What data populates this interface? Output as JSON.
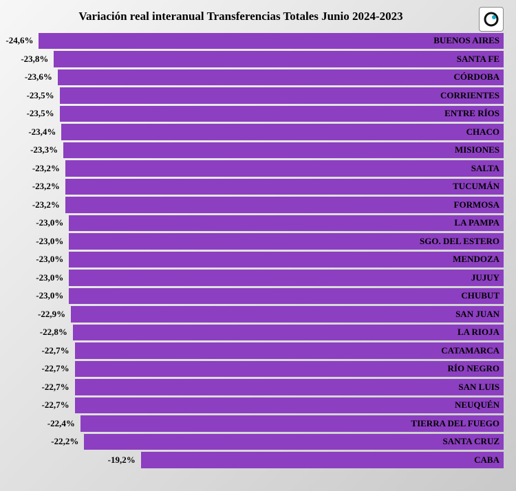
{
  "title": "Variación real interanual Transferencias Totales Junio 2024-2023",
  "title_fontsize": 17,
  "background_gradient_from": "#f7f7f7",
  "background_gradient_to": "#c9c9c9",
  "bar_color": "#8c3fc0",
  "value_label_color": "#000000",
  "province_label_color": "#000000",
  "label_fontsize": 13,
  "x_min": -26.0,
  "x_max": 0.0,
  "logo_colors": {
    "ring": "#111111",
    "dot": "#17a8c9"
  },
  "rows": [
    {
      "province": "BUENOS AIRES",
      "value": -24.6,
      "display": "-24,6%"
    },
    {
      "province": "SANTA FE",
      "value": -23.8,
      "display": "-23,8%"
    },
    {
      "province": "CÓRDOBA",
      "value": -23.6,
      "display": "-23,6%"
    },
    {
      "province": "CORRIENTES",
      "value": -23.5,
      "display": "-23,5%"
    },
    {
      "province": "ENTRE RÍOS",
      "value": -23.5,
      "display": "-23,5%"
    },
    {
      "province": "CHACO",
      "value": -23.4,
      "display": "-23,4%"
    },
    {
      "province": "MISIONES",
      "value": -23.3,
      "display": "-23,3%"
    },
    {
      "province": "SALTA",
      "value": -23.2,
      "display": "-23,2%"
    },
    {
      "province": "TUCUMÁN",
      "value": -23.2,
      "display": "-23,2%"
    },
    {
      "province": "FORMOSA",
      "value": -23.2,
      "display": "-23,2%"
    },
    {
      "province": "LA PAMPA",
      "value": -23.0,
      "display": "-23,0%"
    },
    {
      "province": "SGO. DEL ESTERO",
      "value": -23.0,
      "display": "-23,0%"
    },
    {
      "province": "MENDOZA",
      "value": -23.0,
      "display": "-23,0%"
    },
    {
      "province": "JUJUY",
      "value": -23.0,
      "display": "-23,0%"
    },
    {
      "province": "CHUBUT",
      "value": -23.0,
      "display": "-23,0%"
    },
    {
      "province": "SAN JUAN",
      "value": -22.9,
      "display": "-22,9%"
    },
    {
      "province": "LA RIOJA",
      "value": -22.8,
      "display": "-22,8%"
    },
    {
      "province": "CATAMARCA",
      "value": -22.7,
      "display": "-22,7%"
    },
    {
      "province": "RÍO NEGRO",
      "value": -22.7,
      "display": "-22,7%"
    },
    {
      "province": "SAN LUIS",
      "value": -22.7,
      "display": "-22,7%"
    },
    {
      "province": "NEUQUÉN",
      "value": -22.7,
      "display": "-22,7%"
    },
    {
      "province": "TIERRA DEL FUEGO",
      "value": -22.4,
      "display": "-22,4%"
    },
    {
      "province": "SANTA CRUZ",
      "value": -22.2,
      "display": "-22,2%"
    },
    {
      "province": "CABA",
      "value": -19.2,
      "display": "-19,2%"
    }
  ]
}
